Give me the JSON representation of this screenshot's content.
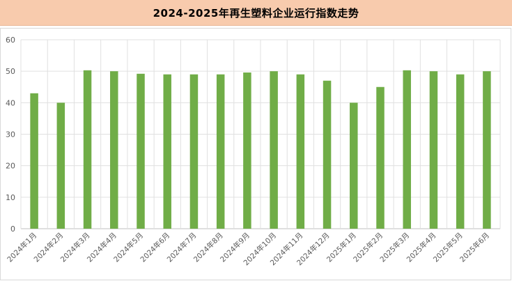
{
  "header": {
    "title": "2024-2025年再生塑料企业运行指数走势"
  },
  "chart_data": {
    "type": "bar",
    "title": "2024-2025年再生塑料企业运行指数走势",
    "categories": [
      "2024年1月",
      "2024年2月",
      "2024年3月",
      "2024年4月",
      "2024年5月",
      "2024年6月",
      "2024年7月",
      "2024年8月",
      "2024年9月",
      "2024年10月",
      "2024年11月",
      "2024年12月",
      "2025年1月",
      "2025年2月",
      "2025年3月",
      "2025年4月",
      "2025年5月",
      "2025年6月"
    ],
    "values": [
      43,
      40,
      50.3,
      50,
      49.2,
      49,
      49,
      49,
      49.6,
      50,
      49,
      47,
      40,
      45,
      50.3,
      50,
      49,
      50
    ],
    "ylim": [
      0,
      60
    ],
    "yticks": [
      "0",
      "10",
      "20",
      "30",
      "40",
      "50",
      "60"
    ],
    "xlabel": "",
    "ylabel": "",
    "grid": true,
    "legend": "none",
    "bar_color": "#70ad47",
    "grid_color": "#e0e0e0"
  }
}
